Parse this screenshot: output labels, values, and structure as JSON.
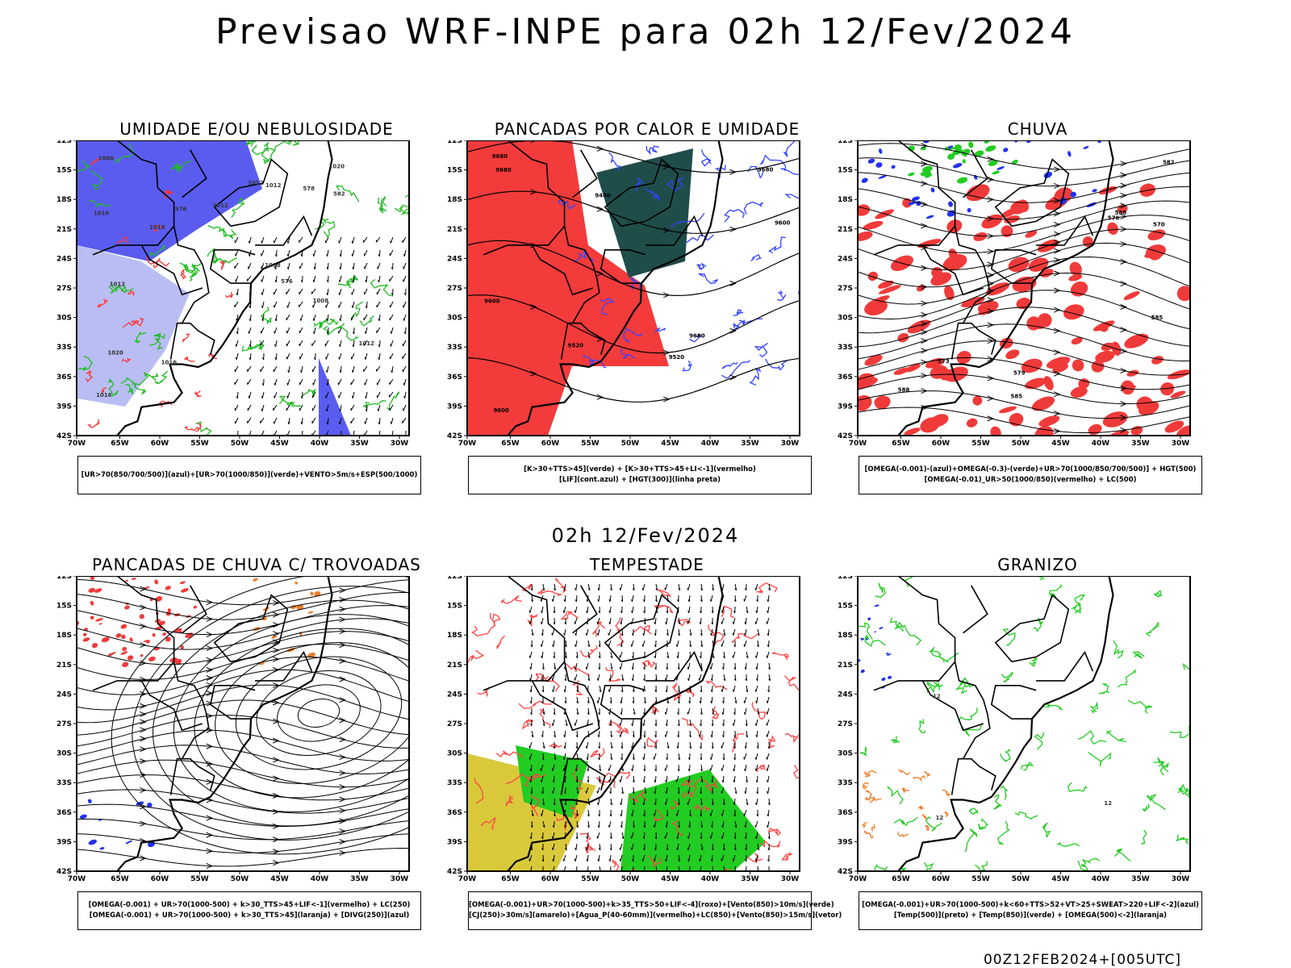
{
  "title": "Previsao WRF-INPE  para 02h 12/Fev/2024",
  "mid_title": "02h 12/Fev/2024",
  "footer": "00Z12FEB2024+[005UTC]",
  "lat_ticks": [
    "12S",
    "15S",
    "18S",
    "21S",
    "24S",
    "27S",
    "30S",
    "33S",
    "36S",
    "39S",
    "42S"
  ],
  "lon_ticks": [
    "70W",
    "65W",
    "60W",
    "55W",
    "50W",
    "45W",
    "40W",
    "35W",
    "30W"
  ],
  "panels": [
    {
      "title": "UMIDADE E/OU NEBULOSIDADE",
      "legend": [
        "[UR>70(850/700/500)](azul)+[UR>70(1000/850)](verde)+VENTO>5m/s+ESP(500/1000)"
      ],
      "labels": [
        "1016",
        "1016",
        "1012",
        "1012",
        "1018",
        "1020",
        "1020",
        "1008",
        "1012",
        "1012",
        "1008",
        "1016",
        "1012",
        "1008",
        "576",
        "576",
        "578",
        "582"
      ]
    },
    {
      "title": "PANCADAS POR CALOR E UMIDADE",
      "legend": [
        "[K>30+TTS>45](verde) + [K>30+TTS>45+LI<-1](vermelho)",
        "[LIF](cont.azul) + [HGT(300)](linha preta)"
      ],
      "labels": [
        "9680",
        "9680",
        "9600",
        "9680",
        "9600",
        "9520",
        "9440",
        "9520",
        "9600",
        "9680"
      ]
    },
    {
      "title": "CHUVA",
      "legend": [
        "[OMEGA(-0.001)-(azul)+OMEGA(-0.3)-(verde)+UR>70(1000/850/700/500)] + HGT(500)",
        "[OMEGA(-0.01)_UR>50(1000/850)(vermelho) + LC(500)"
      ],
      "labels": [
        "588",
        "588",
        "585",
        "585",
        "576",
        "573",
        "570",
        "582",
        "579"
      ]
    },
    {
      "title": "PANCADAS DE CHUVA C/ TROVOADAS",
      "legend": [
        "[OMEGA(-0.001) + UR>70(1000-500) + k>30_TTS>45+LIF<-1](vermelho) + LC(250)",
        "[OMEGA(-0.001) + UR>70(1000-500) + k>30_TTS>45](laranja) + [DIVG(250)](azul)"
      ],
      "labels": []
    },
    {
      "title": "TEMPESTADE",
      "legend": [
        "[OMEGA(-0.001)+UR>70(1000-500)+k>35_TTS>50+LIF<-4](roxo)+[Vento(850)>10m/s](verde)",
        "[CJ(250)>30m/s](amarelo)+[Agua_P(40-60mm)](vermelho)+LC(850)+[Vento(850)>15m/s](vetor)"
      ],
      "labels": []
    },
    {
      "title": "GRANIZO",
      "legend": [
        "[OMEGA(-0.001)+UR>70(1000-500)+k<60+TTS>52+VT>25+SWEAT>220+LIF<-2](azul)",
        "[Temp(500)](preto) + [Temp(850)](verde) + [OMEGA(500)<-2](laranja)"
      ],
      "labels": [
        "12",
        "12",
        "12"
      ]
    }
  ]
}
